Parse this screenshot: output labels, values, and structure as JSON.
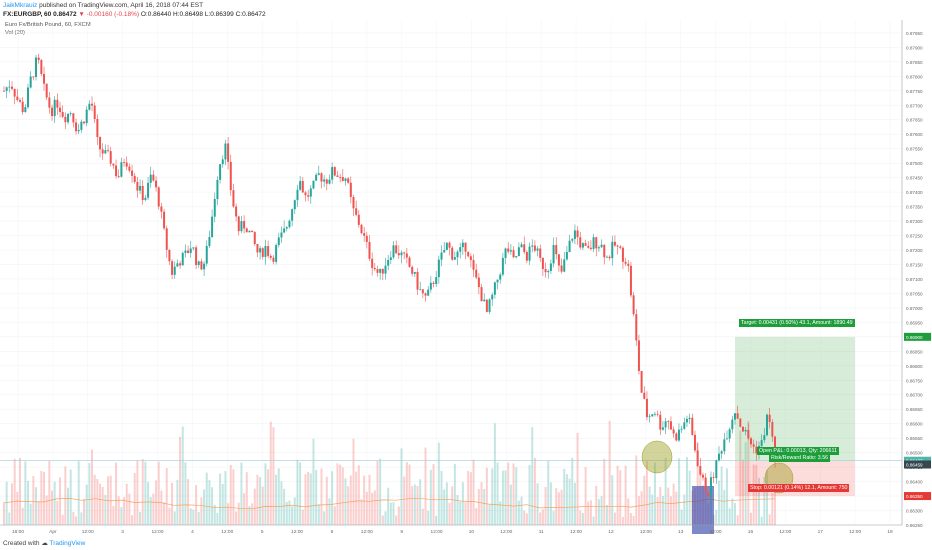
{
  "header": {
    "user": "JaikMkrauiz",
    "published": "published on TradingView.com, April 16, 2018 07:44 EST",
    "symbol": "FX:EURGBP, 60",
    "last": "0.86472",
    "change": "▼ -0.00160 (-0.18%)",
    "ohlc": "O:0.86440 H:0.86498 L:0.86399 C:0.86472"
  },
  "legend": {
    "title": "Euro Fx/British Pound, 60, FXCM",
    "volume": "Vol (20)"
  },
  "footer": {
    "created": "Created with",
    "brand": "TradingView"
  },
  "position": {
    "target_label": "Target: 0.00431 (0.50%) 43.1, Amount: 1890.49",
    "pnl_label": "Open P&L: 0.00013, Qty: 206611",
    "rr_label": "Risk/Reward Ratio: 3.56",
    "stop_label": "Stop: 0.00121 (0.14%) 12.1, Amount: 750",
    "target_price": 0.869,
    "entry_price": 0.8647,
    "stop_price": 0.8635,
    "current_price": 0.86472
  },
  "price_tags": [
    "0.86900",
    "0.86477",
    "0.86459",
    "0.86350"
  ],
  "chart_data": {
    "type": "candlestick",
    "symbol": "EURGBP",
    "interval": "60",
    "ylim": [
      0.8625,
      0.8796
    ],
    "y_ticks": [
      "0.87950",
      "0.87900",
      "0.87850",
      "0.87800",
      "0.87750",
      "0.87700",
      "0.87650",
      "0.87600",
      "0.87550",
      "0.87500",
      "0.87450",
      "0.87400",
      "0.87350",
      "0.87300",
      "0.87250",
      "0.87200",
      "0.87150",
      "0.87100",
      "0.87050",
      "0.87000",
      "0.86950",
      "0.86900",
      "0.86850",
      "0.86800",
      "0.86750",
      "0.86700",
      "0.86650",
      "0.86600",
      "0.86550",
      "0.86500",
      "0.86450",
      "0.86400",
      "0.86350",
      "0.86300",
      "0.86250"
    ],
    "x_ticks": [
      "16:00",
      "Apr",
      "12:00",
      "3",
      "12:00",
      "4",
      "12:00",
      "5",
      "12:00",
      "6",
      "12:00",
      "9",
      "12:00",
      "10",
      "12:00",
      "11",
      "12:00",
      "12",
      "12:00",
      "13",
      "12:00",
      "16",
      "12:00",
      "17",
      "12:00",
      "18"
    ],
    "close_path": [
      0.8775,
      0.8778,
      0.8772,
      0.8768,
      0.8779,
      0.8786,
      0.8775,
      0.8768,
      0.8771,
      0.8766,
      0.8768,
      0.8761,
      0.8766,
      0.8772,
      0.8756,
      0.8753,
      0.8751,
      0.8745,
      0.8752,
      0.8748,
      0.8741,
      0.8738,
      0.8746,
      0.8738,
      0.8724,
      0.8712,
      0.8716,
      0.8718,
      0.8722,
      0.8714,
      0.8716,
      0.8731,
      0.8749,
      0.8756,
      0.8738,
      0.8727,
      0.8729,
      0.8724,
      0.8718,
      0.8721,
      0.8717,
      0.8723,
      0.8727,
      0.8735,
      0.8745,
      0.8738,
      0.8741,
      0.8746,
      0.8744,
      0.8747,
      0.8746,
      0.8745,
      0.8734,
      0.8729,
      0.8722,
      0.8715,
      0.8711,
      0.8716,
      0.8721,
      0.8719,
      0.8716,
      0.8712,
      0.8706,
      0.8703,
      0.8709,
      0.8716,
      0.8722,
      0.8718,
      0.8719,
      0.8722,
      0.8712,
      0.8706,
      0.8698,
      0.8705,
      0.8713,
      0.8721,
      0.8716,
      0.8721,
      0.8718,
      0.8722,
      0.8716,
      0.8713,
      0.8721,
      0.8711,
      0.8719,
      0.8727,
      0.8722,
      0.8719,
      0.8723,
      0.8722,
      0.8717,
      0.8722,
      0.8719,
      0.8716,
      0.8695,
      0.8672,
      0.8662,
      0.8665,
      0.8659,
      0.8662,
      0.8655,
      0.8658,
      0.8663,
      0.8652,
      0.8641,
      0.8636,
      0.8644,
      0.8652,
      0.8658,
      0.8665,
      0.8659,
      0.8655,
      0.8651,
      0.8653,
      0.8664,
      0.8648
    ]
  }
}
